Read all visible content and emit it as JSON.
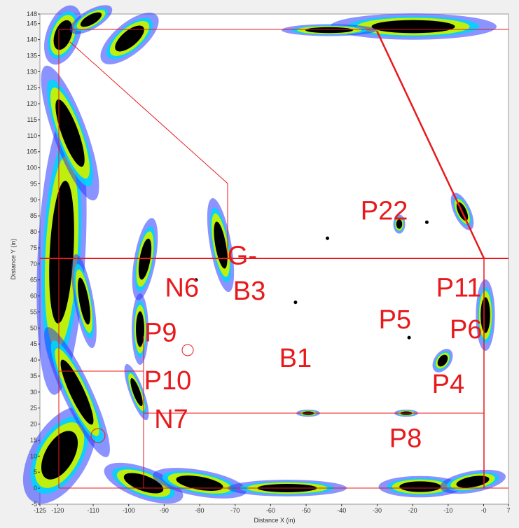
{
  "chart_data": {
    "type": "scatter",
    "x_label": "Distance X (in)",
    "y_label": "Distance Y (in)",
    "xlim": [
      -125,
      7
    ],
    "ylim": [
      -5,
      148
    ],
    "xticks": [
      -125,
      -120,
      -110,
      -100,
      -90,
      -80,
      -70,
      -60,
      -50,
      -40,
      -30,
      -20,
      -10,
      {
        "value": 0,
        "label": "-0"
      },
      7
    ],
    "yticks": [
      -5,
      0,
      5,
      10,
      15,
      20,
      25,
      30,
      35,
      40,
      45,
      50,
      55,
      60,
      65,
      70,
      75,
      80,
      85,
      90,
      95,
      100,
      105,
      110,
      115,
      120,
      125,
      130,
      135,
      140,
      145,
      148
    ],
    "series": [
      {
        "color": "#000000",
        "x": [
          -16,
          -44,
          -53,
          -21,
          -81
        ],
        "values": [
          83,
          78,
          58,
          47,
          65
        ]
      }
    ],
    "annotations": [
      {
        "text": "P22",
        "x": -28,
        "y": 86
      },
      {
        "text": "G-",
        "x": -68,
        "y": 72
      },
      {
        "text": "B3",
        "x": -66,
        "y": 61
      },
      {
        "text": "N6",
        "x": -85,
        "y": 62
      },
      {
        "text": "P11",
        "x": -7,
        "y": 62
      },
      {
        "text": "P5",
        "x": -25,
        "y": 52
      },
      {
        "text": "P6",
        "x": -5,
        "y": 49
      },
      {
        "text": "P9",
        "x": -91,
        "y": 48
      },
      {
        "text": "B1",
        "x": -53,
        "y": 40
      },
      {
        "text": "P10",
        "x": -89,
        "y": 33
      },
      {
        "text": "P4",
        "x": -10,
        "y": 32
      },
      {
        "text": "N7",
        "x": -88,
        "y": 21
      },
      {
        "text": "P8",
        "x": -22,
        "y": 15
      }
    ]
  }
}
